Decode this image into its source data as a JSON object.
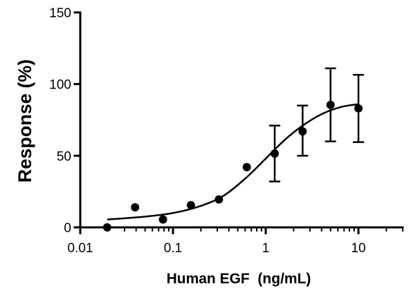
{
  "chart_data": {
    "type": "scatter",
    "xlabel": "Human EGF  (ng/mL)",
    "ylabel": "Response (%)",
    "x_scale": "log",
    "xlim": [
      0.01,
      30
    ],
    "ylim": [
      0,
      150
    ],
    "x_ticks": [
      0.01,
      0.1,
      1,
      10
    ],
    "x_tick_labels": [
      "0.01",
      "0.1",
      "1",
      "10"
    ],
    "y_ticks": [
      0,
      50,
      100,
      150
    ],
    "y_tick_labels": [
      "0",
      "50",
      "100",
      "150"
    ],
    "points": [
      {
        "x": 0.0195,
        "y": 0
      },
      {
        "x": 0.039,
        "y": 14
      },
      {
        "x": 0.078,
        "y": 5.5
      },
      {
        "x": 0.156,
        "y": 15.5
      },
      {
        "x": 0.3125,
        "y": 19.5
      },
      {
        "x": 0.625,
        "y": 42
      },
      {
        "x": 1.25,
        "y": 51.5,
        "err_low": 32,
        "err_high": 71
      },
      {
        "x": 2.5,
        "y": 67,
        "err_low": 50,
        "err_high": 85
      },
      {
        "x": 5,
        "y": 85.5,
        "err_low": 60,
        "err_high": 111
      },
      {
        "x": 10,
        "y": 83,
        "err_low": 59.5,
        "err_high": 106.5
      }
    ],
    "fit_curve": [
      {
        "x": 0.0195,
        "y": 5.5
      },
      {
        "x": 0.05,
        "y": 7.5
      },
      {
        "x": 0.1,
        "y": 10
      },
      {
        "x": 0.2,
        "y": 15
      },
      {
        "x": 0.35,
        "y": 22
      },
      {
        "x": 0.6,
        "y": 34
      },
      {
        "x": 1.0,
        "y": 48
      },
      {
        "x": 1.6,
        "y": 61
      },
      {
        "x": 2.5,
        "y": 71
      },
      {
        "x": 4.0,
        "y": 79
      },
      {
        "x": 6.5,
        "y": 84
      },
      {
        "x": 10,
        "y": 86
      }
    ],
    "grid": false,
    "colors": {
      "marker": "#000000",
      "line": "#000000"
    }
  }
}
